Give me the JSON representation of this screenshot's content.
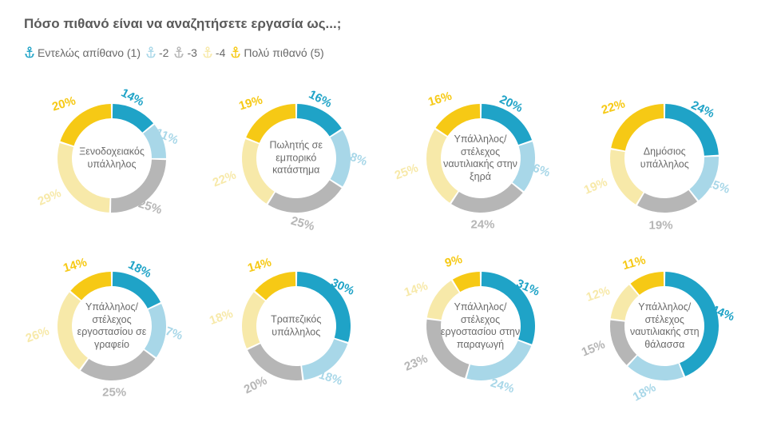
{
  "title": "Πόσο πιθανό είναι να αναζητήσετε εργασία ως...;",
  "legend": {
    "items": [
      {
        "label": "Εντελώς απίθανο (1)",
        "color": "#1fa3c7"
      },
      {
        "label": "-2",
        "color": "#a8d7e8"
      },
      {
        "label": "-3",
        "color": "#b6b6b6"
      },
      {
        "label": "-4",
        "color": "#f7e9a9"
      },
      {
        "label": "Πολύ πιθανό (5)",
        "color": "#f6c915"
      }
    ]
  },
  "chart_style": {
    "type": "donut",
    "outer_radius": 68,
    "inner_radius": 50,
    "gap_deg": 2,
    "start_angle_deg": -90,
    "label_offset": 84,
    "label_fontsize": 15,
    "center_fontsize": 12.5,
    "background_color": "#ffffff",
    "title_color": "#5a5a5a",
    "title_fontsize": 17
  },
  "colors": {
    "s1": "#1fa3c7",
    "s2": "#a8d7e8",
    "s3": "#b6b6b6",
    "s4": "#f7e9a9",
    "s5": "#f6c915"
  },
  "charts": [
    {
      "center_label": "Ξενοδοχειακός υπάλληλος",
      "slices": [
        {
          "value": 14,
          "color": "#1fa3c7"
        },
        {
          "value": 11,
          "color": "#a8d7e8"
        },
        {
          "value": 25,
          "color": "#b6b6b6"
        },
        {
          "value": 29,
          "color": "#f7e9a9"
        },
        {
          "value": 20,
          "color": "#f6c915"
        }
      ]
    },
    {
      "center_label": "Πωλητής σε εμπορικό κατάστημα",
      "slices": [
        {
          "value": 16,
          "color": "#1fa3c7"
        },
        {
          "value": 18,
          "color": "#a8d7e8"
        },
        {
          "value": 25,
          "color": "#b6b6b6"
        },
        {
          "value": 22,
          "color": "#f7e9a9"
        },
        {
          "value": 19,
          "color": "#f6c915"
        }
      ]
    },
    {
      "center_label": "Υπάλληλος/ στέλεχος ναυτιλιακής στην ξηρά",
      "slices": [
        {
          "value": 20,
          "color": "#1fa3c7"
        },
        {
          "value": 16,
          "color": "#a8d7e8"
        },
        {
          "value": 24,
          "color": "#b6b6b6"
        },
        {
          "value": 25,
          "color": "#f7e9a9"
        },
        {
          "value": 16,
          "color": "#f6c915"
        }
      ]
    },
    {
      "center_label": "Δημόσιος υπάλληλος",
      "slices": [
        {
          "value": 24,
          "color": "#1fa3c7"
        },
        {
          "value": 15,
          "color": "#a8d7e8"
        },
        {
          "value": 19,
          "color": "#b6b6b6"
        },
        {
          "value": 19,
          "color": "#f7e9a9"
        },
        {
          "value": 22,
          "color": "#f6c915"
        }
      ]
    },
    {
      "center_label": "Υπάλληλος/ στέλεχος εργοστασίου σε γραφείο",
      "slices": [
        {
          "value": 18,
          "color": "#1fa3c7"
        },
        {
          "value": 17,
          "color": "#a8d7e8"
        },
        {
          "value": 25,
          "color": "#b6b6b6"
        },
        {
          "value": 26,
          "color": "#f7e9a9"
        },
        {
          "value": 14,
          "color": "#f6c915"
        }
      ]
    },
    {
      "center_label": "Τραπεζικός υπάλληλος",
      "slices": [
        {
          "value": 30,
          "color": "#1fa3c7"
        },
        {
          "value": 18,
          "color": "#a8d7e8"
        },
        {
          "value": 20,
          "color": "#b6b6b6"
        },
        {
          "value": 18,
          "color": "#f7e9a9"
        },
        {
          "value": 14,
          "color": "#f6c915"
        }
      ]
    },
    {
      "center_label": "Υπάλληλος/ στέλεχος εργοστασίου στην παραγωγή",
      "slices": [
        {
          "value": 31,
          "color": "#1fa3c7"
        },
        {
          "value": 24,
          "color": "#a8d7e8"
        },
        {
          "value": 23,
          "color": "#b6b6b6"
        },
        {
          "value": 14,
          "color": "#f7e9a9"
        },
        {
          "value": 9,
          "color": "#f6c915"
        }
      ]
    },
    {
      "center_label": "Υπάλληλος/ στέλεχος ναυτιλιακής στη θάλασσα",
      "slices": [
        {
          "value": 44,
          "color": "#1fa3c7"
        },
        {
          "value": 18,
          "color": "#a8d7e8"
        },
        {
          "value": 15,
          "color": "#b6b6b6"
        },
        {
          "value": 12,
          "color": "#f7e9a9"
        },
        {
          "value": 11,
          "color": "#f6c915"
        }
      ]
    }
  ]
}
